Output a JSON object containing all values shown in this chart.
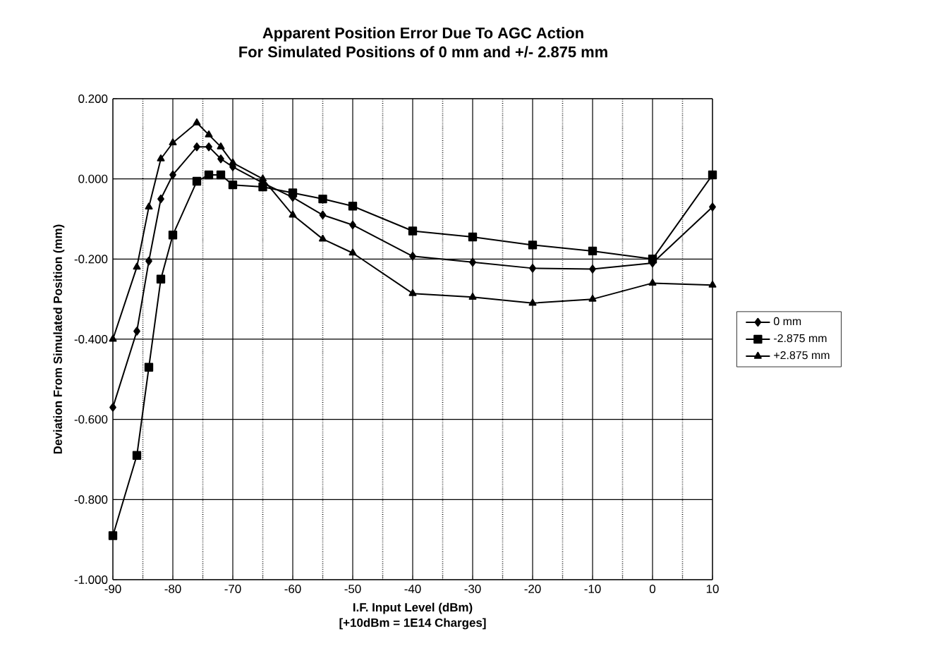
{
  "chart_data": {
    "type": "line",
    "title": "Apparent Position Error Due To AGC Action",
    "subtitle": "For Simulated Positions of 0 mm and +/- 2.875 mm",
    "xlabel": "I.F. Input Level (dBm)",
    "annotations": [
      "[+10dBm = 1E14 Charges]"
    ],
    "ylabel": "Deviation From Simulated Position (mm)",
    "x": [
      -90,
      -86,
      -84,
      -82,
      -80,
      -76,
      -74,
      -72,
      -70,
      -65,
      -60,
      -55,
      -50,
      -40,
      -30,
      -20,
      -10,
      0,
      10
    ],
    "series": [
      {
        "name": "0 mm",
        "color": "#000000",
        "marker": "diamond",
        "values": [
          -0.57,
          -0.38,
          -0.205,
          -0.05,
          0.01,
          0.08,
          0.08,
          0.05,
          0.03,
          -0.01,
          -0.046,
          -0.09,
          -0.115,
          -0.193,
          -0.208,
          -0.223,
          -0.225,
          -0.21,
          -0.07
        ]
      },
      {
        "name": "-2.875 mm",
        "color": "#000000",
        "marker": "square",
        "values": [
          -0.89,
          -0.69,
          -0.47,
          -0.25,
          -0.14,
          -0.006,
          0.01,
          0.01,
          -0.015,
          -0.02,
          -0.035,
          -0.05,
          -0.068,
          -0.13,
          -0.145,
          -0.165,
          -0.18,
          -0.2,
          0.01
        ]
      },
      {
        "name": "+2.875 mm",
        "color": "#000000",
        "marker": "triangle",
        "values": [
          -0.4,
          -0.22,
          -0.07,
          0.05,
          0.09,
          0.14,
          0.11,
          0.08,
          0.04,
          0.0,
          -0.09,
          -0.15,
          -0.185,
          -0.286,
          -0.295,
          -0.31,
          -0.3,
          -0.26,
          -0.265
        ]
      }
    ],
    "xlim": [
      -90,
      10
    ],
    "xticks": [
      -90,
      -80,
      -70,
      -60,
      -50,
      -40,
      -30,
      -20,
      -10,
      0,
      10
    ],
    "ylim": [
      -1.0,
      0.2
    ],
    "yticks": [
      {
        "value": -1.0,
        "label": "-1.000"
      },
      {
        "value": -0.8,
        "label": "-0.800"
      },
      {
        "value": -0.6,
        "label": "-0.600"
      },
      {
        "value": -0.4,
        "label": "-0.400"
      },
      {
        "value": -0.2,
        "label": "-0.200"
      },
      {
        "value": 0.0,
        "label": "0.000"
      },
      {
        "value": 0.2,
        "label": "0.200"
      }
    ],
    "grid": true,
    "legend": "right",
    "line_style": "solid"
  }
}
